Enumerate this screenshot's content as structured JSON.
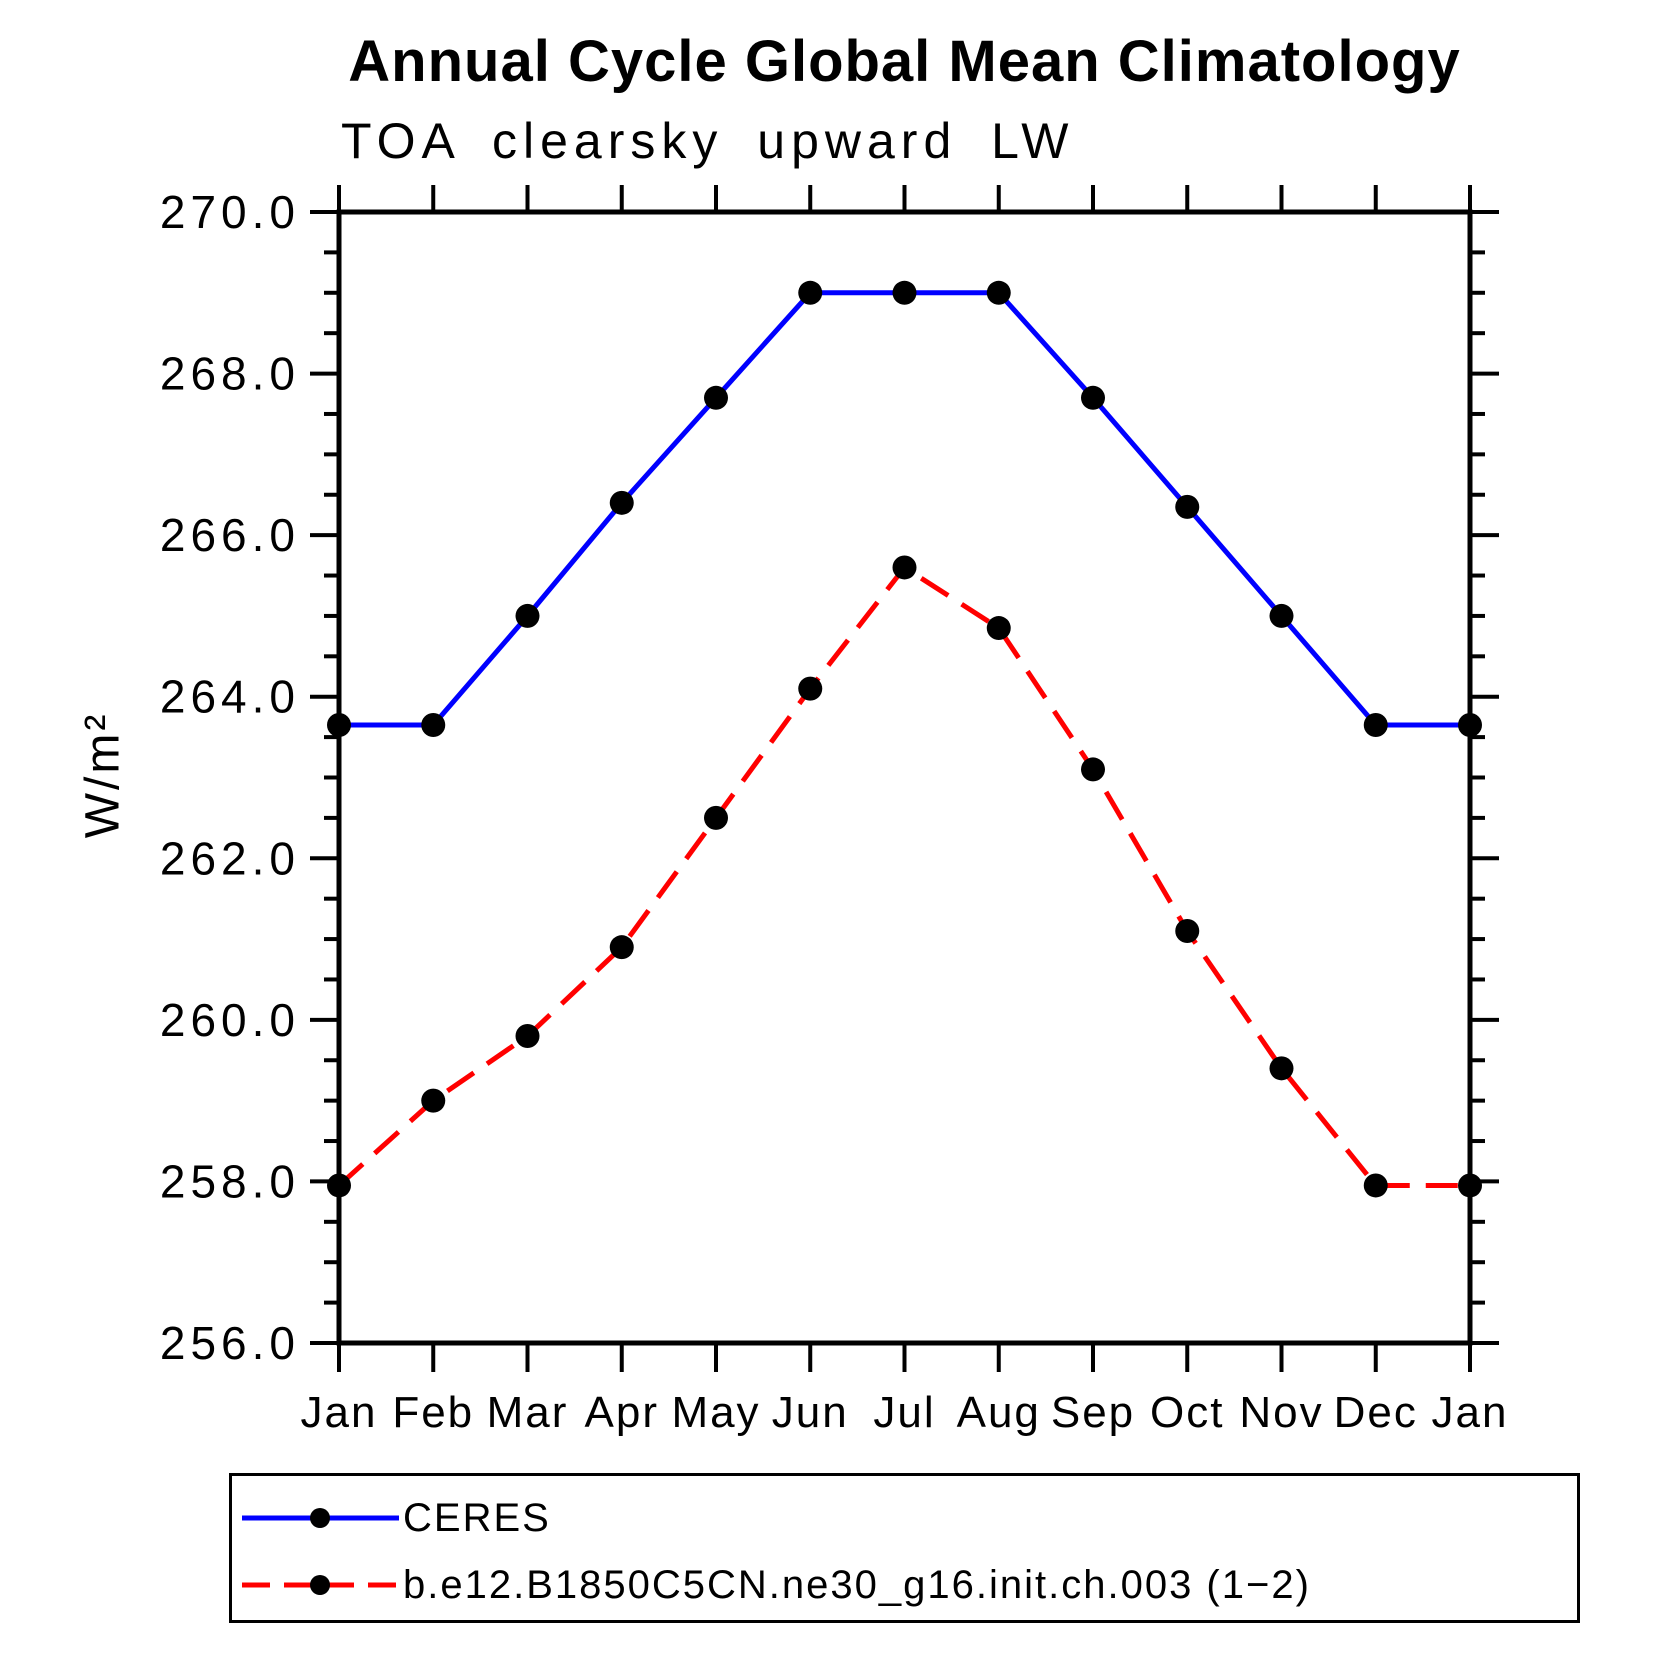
{
  "chart_data": {
    "type": "line",
    "title": "Annual Cycle Global Mean Climatology",
    "subtitle": "TOA clearsky upward LW",
    "ylabel": "W/m²",
    "xlabel": "",
    "categories": [
      "Jan",
      "Feb",
      "Mar",
      "Apr",
      "May",
      "Jun",
      "Jul",
      "Aug",
      "Sep",
      "Oct",
      "Nov",
      "Dec",
      "Jan"
    ],
    "ylim": [
      256.0,
      270.0
    ],
    "ytick_step": 2.0,
    "ytick_minor_step": 0.5,
    "ytick_labels": [
      "256.0",
      "258.0",
      "260.0",
      "262.0",
      "264.0",
      "266.0",
      "268.0",
      "270.0"
    ],
    "grid": false,
    "legend_position": "bottom-left",
    "axis_color": "#000000",
    "series": [
      {
        "name": "CERES",
        "color": "#0000ff",
        "line_style": "solid",
        "marker": "filled-circle",
        "marker_color": "#000000",
        "values": [
          263.65,
          263.65,
          265.0,
          266.4,
          267.7,
          269.0,
          269.0,
          269.0,
          267.7,
          266.35,
          265.0,
          263.65,
          263.65
        ]
      },
      {
        "name": "b.e12.B1850C5CN.ne30_g16.init.ch.003 (1−2)",
        "color": "#ff0000",
        "line_style": "dashed",
        "marker": "filled-circle",
        "marker_color": "#000000",
        "values": [
          257.95,
          259.0,
          259.8,
          260.9,
          262.5,
          264.1,
          265.6,
          264.85,
          263.1,
          261.1,
          259.4,
          257.95,
          257.95
        ]
      }
    ]
  }
}
